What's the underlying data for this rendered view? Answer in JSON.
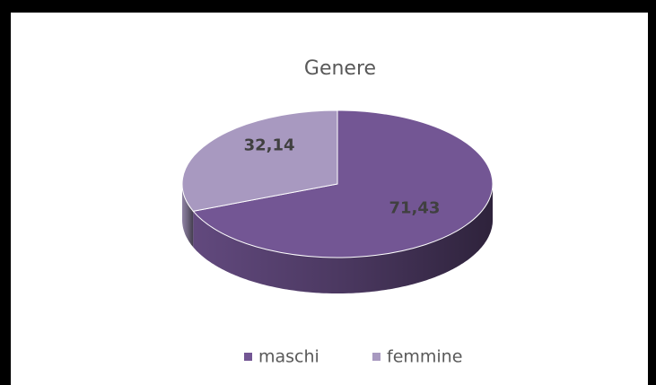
{
  "chart_data": {
    "type": "pie",
    "title": "Genere",
    "categories": [
      "maschi",
      "femmine"
    ],
    "values": [
      71.43,
      32.14
    ],
    "value_labels": [
      "71,43",
      "32,14"
    ],
    "colors": [
      "#735694",
      "#a899c0"
    ],
    "legend": "bottom"
  }
}
